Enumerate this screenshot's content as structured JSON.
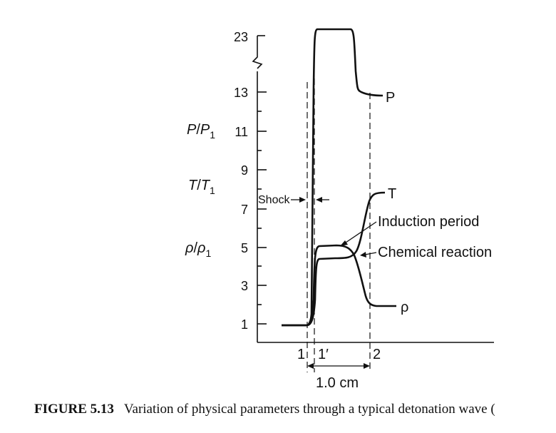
{
  "figure": {
    "number": "FIGURE 5.13",
    "caption": "Variation of physical parameters through a typical detonation wave ("
  },
  "axis": {
    "y_label_pressure": "P/P1",
    "y_label_temperature": "T/T1",
    "y_label_density": "ρ/ρ1",
    "y_ticks": [
      "1",
      "3",
      "5",
      "7",
      "9",
      "11",
      "13",
      "23"
    ],
    "x_ticks": [
      "1",
      "1′",
      "2"
    ],
    "scale_label": "1.0 cm"
  },
  "annotations": {
    "shock": "Shock",
    "induction": "Induction period",
    "reaction": "Chemical reaction"
  },
  "chart_data": {
    "type": "line",
    "title": "",
    "xlabel": "",
    "ylabel": "P/P1, T/T1, ρ/ρ1",
    "y_axis_break": [
      13,
      23
    ],
    "ylim": [
      0,
      23
    ],
    "x_stations": [
      "1",
      "1′",
      "2"
    ],
    "x_scale": "1.0 cm",
    "series": [
      {
        "name": "P",
        "x": [
          0.0,
          0.3,
          0.4,
          0.5,
          0.6,
          1.0,
          1.2,
          1.3,
          1.4,
          1.5,
          1.7,
          1.8
        ],
        "y": [
          1,
          1,
          1.2,
          8,
          23,
          23,
          23,
          22.6,
          13.1,
          12.9,
          12.8,
          12.8
        ]
      },
      {
        "name": "T",
        "x": [
          0.0,
          0.3,
          0.4,
          0.5,
          0.6,
          0.9,
          1.1,
          1.2,
          1.3,
          1.4,
          1.5,
          1.7
        ],
        "y": [
          1,
          1,
          1.2,
          3.8,
          4.4,
          4.5,
          4.7,
          5.5,
          6.8,
          7.6,
          7.8,
          7.8
        ]
      },
      {
        "name": "ρ",
        "x": [
          0.0,
          0.3,
          0.4,
          0.5,
          0.6,
          0.9,
          1.1,
          1.2,
          1.3,
          1.4,
          1.5,
          1.7
        ],
        "y": [
          1,
          1,
          1.2,
          4.6,
          5.0,
          5.0,
          4.8,
          4.3,
          3.0,
          2.1,
          1.9,
          1.9
        ]
      }
    ]
  },
  "colors": {
    "ink": "#111111",
    "background": "#ffffff"
  }
}
